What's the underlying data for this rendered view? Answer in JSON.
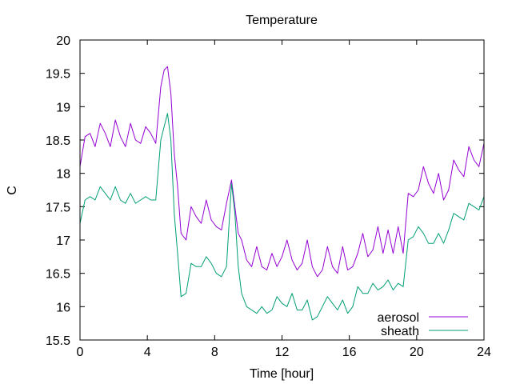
{
  "chart_data": {
    "type": "line",
    "title": "Temperature",
    "xlabel": "Time [hour]",
    "ylabel": "C",
    "xlim": [
      0,
      24
    ],
    "ylim": [
      15.5,
      20
    ],
    "x_ticks": [
      "0",
      "4",
      "8",
      "12",
      "16",
      "20",
      "24"
    ],
    "y_ticks": [
      "15.5",
      "16",
      "16.5",
      "17",
      "17.5",
      "18",
      "18.5",
      "19",
      "19.5",
      "20"
    ],
    "grid": false,
    "legend_position": "bottom-right",
    "series": [
      {
        "name": "aerosol",
        "color": "#9400d3",
        "x": [
          0,
          0.3,
          0.6,
          0.9,
          1.2,
          1.5,
          1.8,
          2.1,
          2.4,
          2.7,
          3.0,
          3.3,
          3.6,
          3.9,
          4.2,
          4.5,
          4.8,
          5.0,
          5.2,
          5.4,
          5.6,
          5.8,
          6.0,
          6.3,
          6.6,
          6.9,
          7.2,
          7.5,
          7.8,
          8.1,
          8.4,
          8.7,
          9.0,
          9.2,
          9.4,
          9.6,
          9.9,
          10.2,
          10.5,
          10.8,
          11.1,
          11.4,
          11.7,
          12.0,
          12.3,
          12.6,
          12.9,
          13.2,
          13.5,
          13.8,
          14.1,
          14.4,
          14.7,
          15.0,
          15.3,
          15.6,
          15.9,
          16.2,
          16.5,
          16.8,
          17.1,
          17.4,
          17.7,
          18.0,
          18.3,
          18.6,
          18.9,
          19.2,
          19.5,
          19.8,
          20.1,
          20.4,
          20.7,
          21.0,
          21.3,
          21.6,
          21.9,
          22.2,
          22.5,
          22.8,
          23.1,
          23.4,
          23.7,
          24.0
        ],
        "y": [
          18.1,
          18.55,
          18.6,
          18.4,
          18.75,
          18.6,
          18.4,
          18.8,
          18.55,
          18.4,
          18.75,
          18.5,
          18.45,
          18.7,
          18.6,
          18.45,
          19.3,
          19.55,
          19.6,
          19.2,
          18.3,
          17.8,
          17.1,
          17.0,
          17.5,
          17.35,
          17.25,
          17.6,
          17.3,
          17.2,
          17.15,
          17.55,
          17.9,
          17.5,
          17.1,
          17.0,
          16.7,
          16.6,
          16.9,
          16.6,
          16.55,
          16.8,
          16.6,
          16.75,
          17.0,
          16.7,
          16.55,
          16.65,
          17.0,
          16.6,
          16.45,
          16.55,
          16.9,
          16.6,
          16.5,
          16.9,
          16.55,
          16.6,
          16.8,
          17.1,
          16.75,
          16.85,
          17.2,
          16.8,
          17.15,
          16.8,
          17.2,
          16.8,
          17.7,
          17.65,
          17.75,
          18.1,
          17.85,
          17.7,
          18.0,
          17.6,
          17.75,
          18.2,
          18.05,
          17.95,
          18.4,
          18.2,
          18.1,
          18.45
        ]
      },
      {
        "name": "sheath",
        "color": "#009e73",
        "x": [
          0,
          0.3,
          0.6,
          0.9,
          1.2,
          1.5,
          1.8,
          2.1,
          2.4,
          2.7,
          3.0,
          3.3,
          3.6,
          3.9,
          4.2,
          4.5,
          4.8,
          5.0,
          5.2,
          5.4,
          5.6,
          5.8,
          6.0,
          6.3,
          6.6,
          6.9,
          7.2,
          7.5,
          7.8,
          8.1,
          8.4,
          8.7,
          9.0,
          9.2,
          9.4,
          9.6,
          9.9,
          10.2,
          10.5,
          10.8,
          11.1,
          11.4,
          11.7,
          12.0,
          12.3,
          12.6,
          12.9,
          13.2,
          13.5,
          13.8,
          14.1,
          14.4,
          14.7,
          15.0,
          15.3,
          15.6,
          15.9,
          16.2,
          16.5,
          16.8,
          17.1,
          17.4,
          17.7,
          18.0,
          18.3,
          18.6,
          18.9,
          19.2,
          19.5,
          19.8,
          20.1,
          20.4,
          20.7,
          21.0,
          21.3,
          21.6,
          21.9,
          22.2,
          22.5,
          22.8,
          23.1,
          23.4,
          23.7,
          24.0
        ],
        "y": [
          17.25,
          17.6,
          17.65,
          17.6,
          17.8,
          17.7,
          17.6,
          17.8,
          17.6,
          17.55,
          17.7,
          17.55,
          17.6,
          17.65,
          17.6,
          17.6,
          18.5,
          18.7,
          18.9,
          18.5,
          17.4,
          16.8,
          16.15,
          16.2,
          16.65,
          16.6,
          16.6,
          16.75,
          16.65,
          16.5,
          16.45,
          16.6,
          17.85,
          17.4,
          16.6,
          16.2,
          16.0,
          15.95,
          15.9,
          16.0,
          15.9,
          15.95,
          16.15,
          16.05,
          16.0,
          16.2,
          15.95,
          15.95,
          16.1,
          15.8,
          15.85,
          16.0,
          16.15,
          16.05,
          15.95,
          16.1,
          15.9,
          16.0,
          16.3,
          16.2,
          16.2,
          16.35,
          16.25,
          16.3,
          16.4,
          16.25,
          16.35,
          16.3,
          17.0,
          17.05,
          17.2,
          17.1,
          16.95,
          16.95,
          17.1,
          16.95,
          17.15,
          17.4,
          17.35,
          17.3,
          17.55,
          17.5,
          17.45,
          17.65
        ]
      }
    ]
  }
}
